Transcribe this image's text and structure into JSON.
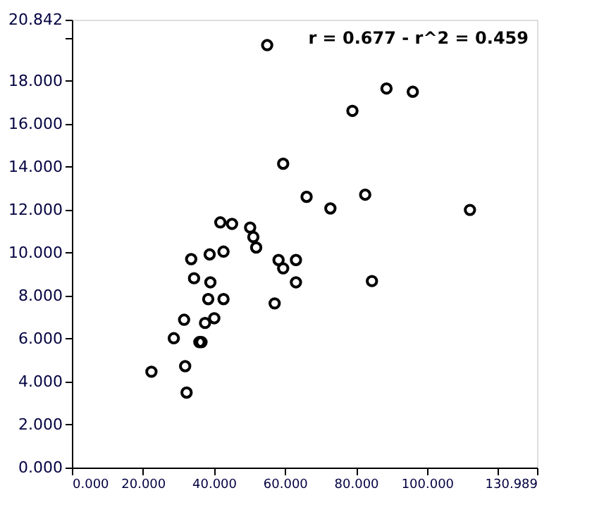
{
  "chart_data": {
    "type": "scatter",
    "annotations": [
      "r = 0.677 - r^2 = 0.459"
    ],
    "x": [
      55.0,
      88.6,
      96.0,
      79.0,
      59.5,
      66.1,
      82.6,
      72.8,
      112.1,
      41.8,
      45.1,
      50.2,
      51.1,
      51.9,
      33.6,
      38.8,
      42.7,
      58.2,
      63.1,
      59.5,
      34.4,
      39.0,
      63.1,
      84.5,
      38.4,
      42.7,
      57.1,
      31.6,
      37.5,
      40.1,
      28.7,
      35.9,
      36.5,
      22.4,
      31.9,
      32.3
    ],
    "series": [
      {
        "color": "#000000",
        "values": [
          19.66,
          17.64,
          17.49,
          16.6,
          14.14,
          12.6,
          12.7,
          12.06,
          11.99,
          11.41,
          11.34,
          11.17,
          10.73,
          10.24,
          9.7,
          9.92,
          10.05,
          9.66,
          9.66,
          9.27,
          8.81,
          8.62,
          8.62,
          8.68,
          7.84,
          7.84,
          7.64,
          6.88,
          6.73,
          6.95,
          6.02,
          5.84,
          5.84,
          4.46,
          4.72,
          3.49
        ]
      }
    ],
    "marker": "circle",
    "grid": false,
    "xlim": [
      0,
      130.989
    ],
    "ylim": [
      0,
      20.842
    ],
    "xticks": [
      {
        "value": 0,
        "label": "0.000"
      },
      {
        "value": 20,
        "label": "20.000"
      },
      {
        "value": 40,
        "label": "40.000"
      },
      {
        "value": 60,
        "label": "60.000"
      },
      {
        "value": 80,
        "label": "80.000"
      },
      {
        "value": 100,
        "label": "100.000"
      },
      {
        "value": 120,
        "label": null
      },
      {
        "value": 130.989,
        "label": "130.989"
      }
    ],
    "yticks": [
      {
        "value": 0,
        "label": "0.000"
      },
      {
        "value": 2,
        "label": "2.000"
      },
      {
        "value": 4,
        "label": "4.000"
      },
      {
        "value": 6,
        "label": "6.000"
      },
      {
        "value": 8,
        "label": "8.000"
      },
      {
        "value": 10,
        "label": "10.000"
      },
      {
        "value": 12,
        "label": "12.000"
      },
      {
        "value": 14,
        "label": "14.000"
      },
      {
        "value": 16,
        "label": "16.000"
      },
      {
        "value": 18,
        "label": "18.000"
      },
      {
        "value": 20,
        "label": null
      },
      {
        "value": 20.842,
        "label": "20.842"
      }
    ]
  }
}
